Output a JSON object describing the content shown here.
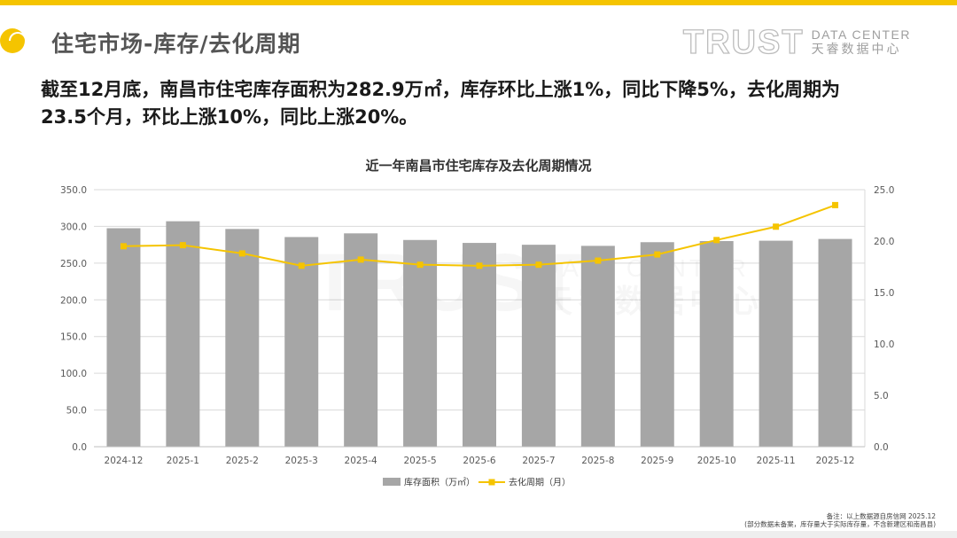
{
  "header": {
    "title": "住宅市场-库存/去化周期",
    "brand_en_main": "TRUST",
    "brand_en_sub": "DATA CENTER",
    "brand_cn": "天睿数据中心"
  },
  "summary": {
    "line1": "截至12月底，南昌市住宅库存面积为282.9万㎡，库存环比上涨1%，同比下降5%，去化周期为",
    "line2": "23.5个月，环比上涨10%，同比上涨20%。"
  },
  "footnote": {
    "line1": "备注：以上数据源自房信网   2025.12",
    "line2": "(部分数据未备案，库存量大于实际库存量，不含新建区和南昌县)"
  },
  "colors": {
    "accent": "#f5c400",
    "bar": "#a6a6a6",
    "line": "#f5c400",
    "grid": "#d9d9d9"
  },
  "chart_data": {
    "type": "bar",
    "title": "近一年南昌市住宅库存及去化周期情况",
    "categories": [
      "2024-12",
      "2025-1",
      "2025-2",
      "2025-3",
      "2025-4",
      "2025-5",
      "2025-6",
      "2025-7",
      "2025-8",
      "2025-9",
      "2025-10",
      "2025-11",
      "2025-12"
    ],
    "series": [
      {
        "name": "库存面积（万㎡）",
        "type": "bar",
        "axis": "left",
        "values": [
          297.5,
          307.0,
          296.5,
          285.5,
          290.5,
          281.5,
          277.5,
          275.0,
          273.5,
          278.5,
          280.0,
          280.5,
          282.9
        ]
      },
      {
        "name": "去化周期（月）",
        "type": "line",
        "axis": "right",
        "values": [
          19.5,
          19.6,
          18.8,
          17.6,
          18.2,
          17.7,
          17.6,
          17.7,
          18.1,
          18.7,
          20.1,
          21.4,
          23.5
        ]
      }
    ],
    "ylim": [
      0,
      350
    ],
    "yticks": [
      "0.0",
      "50.0",
      "100.0",
      "150.0",
      "200.0",
      "250.0",
      "300.0",
      "350.0"
    ],
    "y2lim": [
      0,
      25
    ],
    "y2ticks": [
      "0.0",
      "5.0",
      "10.0",
      "15.0",
      "20.0",
      "25.0"
    ],
    "grid": true,
    "legend": "bottom-center"
  }
}
